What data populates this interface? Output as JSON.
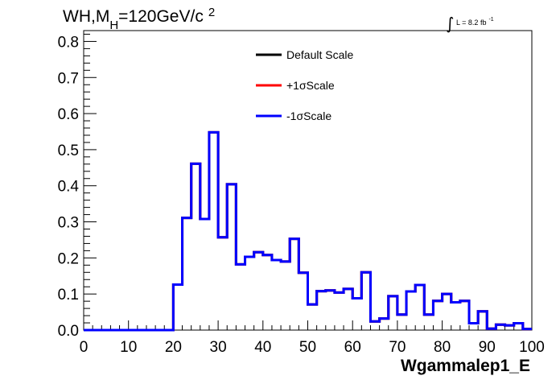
{
  "chart_data": {
    "type": "line",
    "title_parts": {
      "main": "WH,M",
      "sub": "H",
      "rest": "=120GeV/c",
      "sup": "2"
    },
    "lumi_label": {
      "prefix": "L = 8.2 fb",
      "sup": "-1"
    },
    "xlabel": "Wgammalep1_E",
    "ylabel": "",
    "xlim": [
      0,
      100
    ],
    "ylim": [
      0,
      0.83
    ],
    "xticks": [
      "0",
      "10",
      "20",
      "30",
      "40",
      "50",
      "60",
      "70",
      "80",
      "90",
      "100"
    ],
    "yticks": [
      "0.0",
      "0.1",
      "0.2",
      "0.3",
      "0.4",
      "0.5",
      "0.6",
      "0.7",
      "0.8"
    ],
    "bin_width": 2,
    "x": [
      1,
      3,
      5,
      7,
      9,
      11,
      13,
      15,
      17,
      19,
      21,
      23,
      25,
      27,
      29,
      31,
      33,
      35,
      37,
      39,
      41,
      43,
      45,
      47,
      49,
      51,
      53,
      55,
      57,
      59,
      61,
      63,
      65,
      67,
      69,
      71,
      73,
      75,
      77,
      79,
      81,
      83,
      85,
      87,
      89,
      91,
      93,
      95,
      97,
      99
    ],
    "series": [
      {
        "name": "Default Scale",
        "color": "#000000",
        "values": [
          0,
          0,
          0,
          0,
          0,
          0,
          0,
          0,
          0,
          0,
          0.126,
          0.311,
          0.461,
          0.308,
          0.548,
          0.257,
          0.404,
          0.182,
          0.203,
          0.216,
          0.208,
          0.194,
          0.19,
          0.253,
          0.159,
          0.071,
          0.108,
          0.11,
          0.104,
          0.114,
          0.088,
          0.16,
          0.024,
          0.032,
          0.094,
          0.043,
          0.107,
          0.125,
          0.043,
          0.081,
          0.1,
          0.077,
          0.081,
          0.019,
          0.052,
          0.004,
          0.015,
          0.013,
          0.019,
          0.003
        ]
      },
      {
        "name": "+1σScale",
        "color": "#ff0000",
        "values": [
          0,
          0,
          0,
          0,
          0,
          0,
          0,
          0,
          0,
          0,
          0.126,
          0.311,
          0.461,
          0.308,
          0.548,
          0.257,
          0.404,
          0.182,
          0.203,
          0.216,
          0.208,
          0.194,
          0.19,
          0.253,
          0.159,
          0.071,
          0.108,
          0.11,
          0.104,
          0.114,
          0.088,
          0.16,
          0.024,
          0.032,
          0.094,
          0.043,
          0.107,
          0.125,
          0.043,
          0.081,
          0.1,
          0.077,
          0.081,
          0.019,
          0.052,
          0.004,
          0.015,
          0.013,
          0.019,
          0.003
        ]
      },
      {
        "name": "-1σScale",
        "color": "#0000ff",
        "values": [
          0,
          0,
          0,
          0,
          0,
          0,
          0,
          0,
          0,
          0,
          0.126,
          0.311,
          0.461,
          0.308,
          0.548,
          0.257,
          0.404,
          0.182,
          0.203,
          0.216,
          0.208,
          0.194,
          0.19,
          0.253,
          0.159,
          0.071,
          0.108,
          0.11,
          0.104,
          0.114,
          0.088,
          0.16,
          0.024,
          0.032,
          0.094,
          0.043,
          0.107,
          0.125,
          0.043,
          0.081,
          0.1,
          0.077,
          0.081,
          0.019,
          0.052,
          0.004,
          0.015,
          0.013,
          0.019,
          0.003
        ]
      }
    ],
    "grid": false,
    "legend_position": "top-center"
  }
}
